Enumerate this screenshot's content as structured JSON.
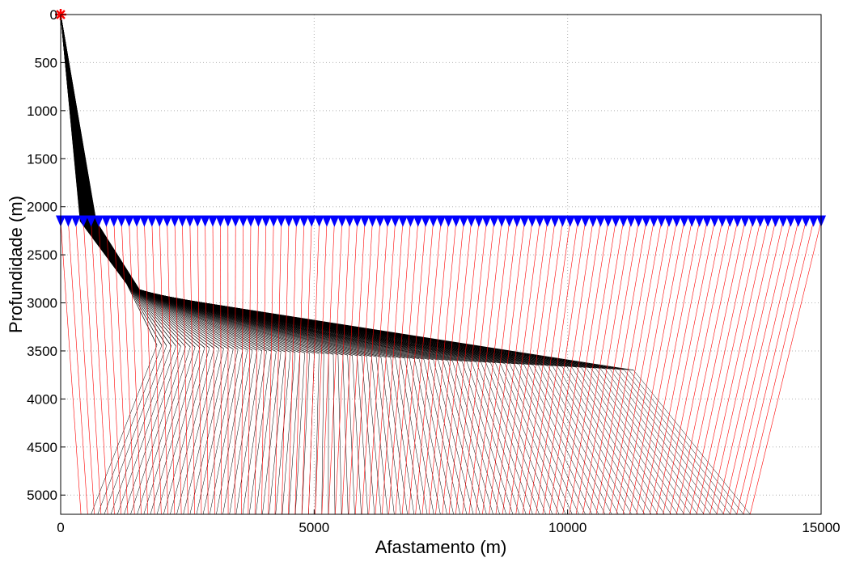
{
  "chart_data": {
    "type": "line",
    "title": "",
    "xlabel": "Afastamento (m)",
    "ylabel": "Profundidade (m)",
    "xlim": [
      0,
      15000
    ],
    "ylim": [
      5200,
      0
    ],
    "y_reversed": true,
    "grid": true,
    "grid_style": "dotted",
    "x_ticks": [
      0,
      5000,
      10000,
      15000
    ],
    "x_tick_labels": [
      "0",
      "5000",
      "10000",
      "15000"
    ],
    "y_ticks": [
      0,
      500,
      1000,
      1500,
      2000,
      2500,
      3000,
      3500,
      4000,
      4500,
      5000
    ],
    "y_tick_labels": [
      "0",
      "500",
      "1000",
      "1500",
      "2000",
      "2500",
      "3000",
      "3500",
      "4000",
      "4500",
      "5000"
    ],
    "colors": {
      "downgoing_rays": "#000000",
      "upgoing_rays": "#ff0000",
      "receivers": "#0000ff",
      "source": "#ff0000",
      "grid": "#b0b0b0"
    },
    "source": {
      "x": 0,
      "y": 0,
      "marker": "asterisk"
    },
    "receivers": {
      "depth": 2150,
      "x_start": 0,
      "x_end": 15000,
      "count": 101,
      "marker": "triangle-down"
    },
    "reflector": {
      "points": [
        [
          1900,
          3440
        ],
        [
          11300,
          3700
        ]
      ],
      "shallow_fan_vertex": [
        0,
        0
      ],
      "fan_bend_at_receivers": [
        700,
        2150
      ],
      "bend_point": [
        1300,
        2800
      ]
    },
    "deep_ray_bundle": {
      "apex": [
        11300,
        3700
      ],
      "bottom_x_range": [
        600,
        13600
      ],
      "bottom_depth": 5200
    },
    "upgoing_ray_bottom_x_range": [
      400,
      13600
    ],
    "upgoing_ray_top_x_range": [
      0,
      15000
    ]
  }
}
